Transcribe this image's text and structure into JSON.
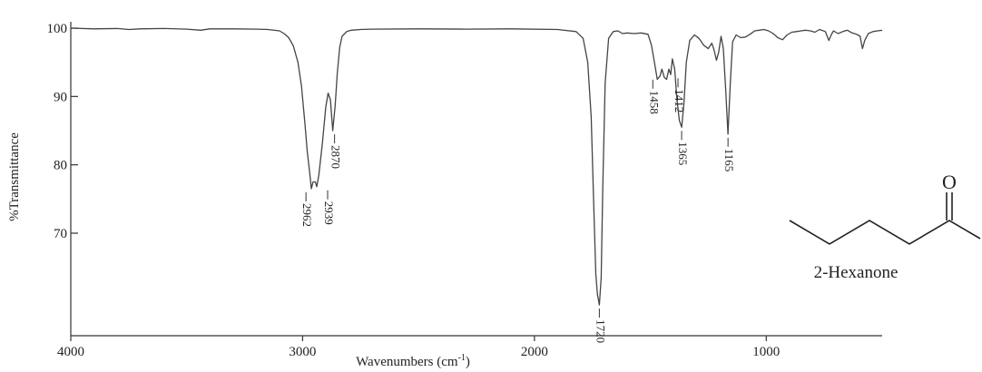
{
  "chart_data": {
    "type": "line",
    "title": "",
    "xlabel": "Wavenumbers (cm",
    "xlabel_sup": "-1",
    "xlabel_close": ")",
    "ylabel": "%Transmittance",
    "xlim": [
      4000,
      500
    ],
    "ylim": [
      55,
      101
    ],
    "x_reversed": true,
    "grid": false,
    "xticks": [
      {
        "value": 4000,
        "label": "4000"
      },
      {
        "value": 3000,
        "label": "3000"
      },
      {
        "value": 2000,
        "label": "2000"
      },
      {
        "value": 1000,
        "label": "1000"
      }
    ],
    "yticks": [
      {
        "value": 100,
        "label": "100"
      },
      {
        "value": 90,
        "label": "90"
      },
      {
        "value": 80,
        "label": "80"
      },
      {
        "value": 70,
        "label": "70"
      }
    ],
    "series": [
      {
        "x": [
          4000,
          3900,
          3800,
          3750,
          3700,
          3600,
          3500,
          3440,
          3400,
          3300,
          3200,
          3150,
          3100,
          3080,
          3060,
          3040,
          3020,
          3005,
          2990,
          2980,
          2970,
          2962,
          2955,
          2945,
          2939,
          2930,
          2915,
          2900,
          2890,
          2880,
          2870,
          2860,
          2850,
          2840,
          2830,
          2810,
          2790,
          2750,
          2700,
          2500,
          2300,
          2100,
          1900,
          1820,
          1790,
          1770,
          1755,
          1745,
          1735,
          1728,
          1720,
          1712,
          1705,
          1695,
          1680,
          1660,
          1640,
          1620,
          1600,
          1570,
          1540,
          1510,
          1495,
          1480,
          1470,
          1458,
          1450,
          1440,
          1430,
          1420,
          1412,
          1405,
          1395,
          1385,
          1375,
          1365,
          1355,
          1345,
          1330,
          1310,
          1290,
          1270,
          1250,
          1235,
          1225,
          1215,
          1205,
          1195,
          1185,
          1175,
          1165,
          1155,
          1145,
          1130,
          1110,
          1090,
          1070,
          1050,
          1030,
          1010,
          990,
          970,
          950,
          930,
          910,
          890,
          870,
          850,
          830,
          810,
          790,
          770,
          745,
          730,
          720,
          710,
          690,
          670,
          650,
          630,
          610,
          595,
          585,
          575,
          560,
          540,
          520,
          500
        ],
        "y": [
          100.0,
          99.9,
          99.95,
          99.8,
          99.9,
          99.95,
          99.85,
          99.7,
          99.9,
          99.9,
          99.85,
          99.8,
          99.6,
          99.2,
          98.6,
          97.4,
          95.0,
          91.5,
          86.0,
          82.0,
          79.0,
          76.5,
          77.5,
          77.5,
          76.8,
          78.5,
          83.0,
          88.5,
          90.5,
          89.5,
          85.0,
          88.5,
          93.5,
          97.2,
          98.8,
          99.5,
          99.7,
          99.8,
          99.85,
          99.9,
          99.85,
          99.9,
          99.8,
          99.5,
          98.5,
          95.0,
          87.0,
          75.0,
          64.0,
          61.0,
          59.5,
          63.5,
          77.0,
          92.0,
          98.5,
          99.5,
          99.6,
          99.2,
          99.3,
          99.2,
          99.3,
          99.1,
          97.5,
          94.5,
          92.5,
          93.0,
          94.0,
          92.8,
          92.5,
          94.0,
          93.2,
          95.5,
          94.0,
          89.5,
          86.5,
          85.5,
          89.0,
          95.0,
          98.2,
          99.0,
          98.5,
          97.5,
          97.0,
          97.8,
          96.8,
          95.3,
          96.5,
          98.8,
          97.0,
          91.0,
          84.5,
          92.0,
          98.0,
          99.0,
          98.6,
          98.7,
          99.1,
          99.6,
          99.7,
          99.8,
          99.6,
          99.2,
          98.6,
          98.3,
          99.0,
          99.4,
          99.5,
          99.6,
          99.7,
          99.6,
          99.4,
          99.8,
          99.5,
          98.2,
          99.0,
          99.6,
          99.2,
          99.5,
          99.7,
          99.3,
          99.1,
          98.8,
          97.0,
          98.2,
          99.2,
          99.5,
          99.6,
          99.7
        ]
      }
    ],
    "annotations": [
      {
        "label": "2962",
        "x": 2962,
        "y": 76.5
      },
      {
        "label": "2939",
        "x": 2939,
        "y": 76.8
      },
      {
        "label": "2870",
        "x": 2870,
        "y": 85.0
      },
      {
        "label": "1720",
        "x": 1720,
        "y": 59.5
      },
      {
        "label": "1458",
        "x": 1458,
        "y": 93.0
      },
      {
        "label": "1412",
        "x": 1412,
        "y": 93.2
      },
      {
        "label": "1365",
        "x": 1365,
        "y": 85.5
      },
      {
        "label": "1165",
        "x": 1165,
        "y": 84.5
      }
    ]
  },
  "structure": {
    "compound_name": "2-Hexanone",
    "oxygen_label": "O"
  },
  "colors": {
    "line": "#444444",
    "axis": "#333333"
  }
}
